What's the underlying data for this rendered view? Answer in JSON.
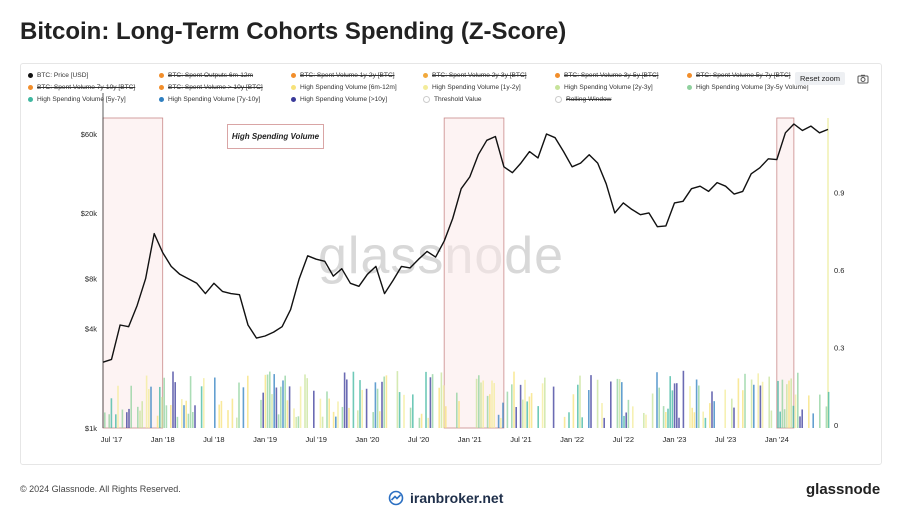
{
  "page": {
    "title": "Bitcoin: Long-Term Cohorts Spending (Z-Score)",
    "reset_zoom": "Reset zoom",
    "annotation": "High Spending Volume",
    "watermark": "glassnode",
    "copyright": "© 2024 Glassnode. All Rights Reserved.",
    "brand_center": "iranbroker.net",
    "brand_right": "glassnode",
    "camera_icon": "camera-icon"
  },
  "legend": [
    {
      "label": "BTC: Price [USD]",
      "color": "#111111",
      "struck": false
    },
    {
      "label": "BTC: Spent Outputs 6m-12m",
      "color": "#f28e2b",
      "struck": true
    },
    {
      "label": "BTC: Spent Volume 1y-2y [BTC]",
      "color": "#f28e2b",
      "struck": true
    },
    {
      "label": "BTC: Spent Volume 2y-3y [BTC]",
      "color": "#f2a93b",
      "struck": true
    },
    {
      "label": "BTC: Spent Volume 3y-5y [BTC]",
      "color": "#f28e2b",
      "struck": true
    },
    {
      "label": "BTC: Spent Volume 5y-7y [BTC]",
      "color": "#f28e2b",
      "struck": true
    },
    {
      "label": "BTC: Spent Volume 7y-10y [BTC]",
      "color": "#f28e2b",
      "struck": true
    },
    {
      "label": "BTC: Spent Volume > 10y [BTC]",
      "color": "#f28e2b",
      "struck": true
    },
    {
      "label": "High Spending Volume [6m-12m]",
      "color": "#f7e27a",
      "struck": false
    },
    {
      "label": "High Spending Volume [1y-2y]",
      "color": "#f3ec9a",
      "struck": false
    },
    {
      "label": "High Spending Volume [2y-3y]",
      "color": "#c7e39a",
      "struck": false
    },
    {
      "label": "High Spending Volume [3y-5y Volume]",
      "color": "#8fd19e",
      "struck": false
    },
    {
      "label": "High Spending Volume [5y-7y]",
      "color": "#3fb7a0",
      "struck": false
    },
    {
      "label": "High Spending Volume [7y-10y]",
      "color": "#2f7fc0",
      "struck": false
    },
    {
      "label": "High Spending Volume [>10y]",
      "color": "#3a3a9a",
      "struck": false
    },
    {
      "label": "Threshold Value",
      "color": "#ffffff",
      "struck": false
    },
    {
      "label": "Rolling Window",
      "color": "#ffffff",
      "struck": true
    }
  ],
  "chart_data": {
    "type": "line",
    "title": "Bitcoin: Long-Term Cohorts Spending (Z-Score)",
    "y_left": {
      "scale": "log",
      "range": [
        1000,
        75000
      ],
      "ticks": [
        "$1k",
        "$4k",
        "$8k",
        "$20k",
        "$60k"
      ]
    },
    "y_right": {
      "scale": "linear",
      "range": [
        0,
        1.2
      ],
      "ticks": [
        "0",
        "0.3",
        "0.6",
        "0.9"
      ]
    },
    "x_ticks": [
      "Jul '17",
      "Jan '18",
      "Jul '18",
      "Jan '19",
      "Jul '19",
      "Jan '20",
      "Jul '20",
      "Jan '21",
      "Jul '21",
      "Jan '22",
      "Jul '22",
      "Jan '23",
      "Jul '23",
      "Jan '24"
    ],
    "x_range": [
      "2017-06",
      "2024-07"
    ],
    "series": [
      {
        "name": "BTC: Price [USD]",
        "color": "#111111",
        "x": [
          "2017-06",
          "2017-07",
          "2017-08",
          "2017-09",
          "2017-10",
          "2017-11",
          "2017-12",
          "2018-01",
          "2018-02",
          "2018-03",
          "2018-04",
          "2018-05",
          "2018-06",
          "2018-07",
          "2018-08",
          "2018-09",
          "2018-10",
          "2018-11",
          "2018-12",
          "2019-01",
          "2019-02",
          "2019-03",
          "2019-04",
          "2019-05",
          "2019-06",
          "2019-07",
          "2019-08",
          "2019-09",
          "2019-10",
          "2019-11",
          "2019-12",
          "2020-01",
          "2020-02",
          "2020-03",
          "2020-04",
          "2020-05",
          "2020-06",
          "2020-07",
          "2020-08",
          "2020-09",
          "2020-10",
          "2020-11",
          "2020-12",
          "2021-01",
          "2021-02",
          "2021-03",
          "2021-04",
          "2021-05",
          "2021-06",
          "2021-07",
          "2021-08",
          "2021-09",
          "2021-10",
          "2021-11",
          "2021-12",
          "2022-01",
          "2022-02",
          "2022-03",
          "2022-04",
          "2022-05",
          "2022-06",
          "2022-07",
          "2022-08",
          "2022-09",
          "2022-10",
          "2022-11",
          "2022-12",
          "2023-01",
          "2023-02",
          "2023-03",
          "2023-04",
          "2023-05",
          "2023-06",
          "2023-07",
          "2023-08",
          "2023-09",
          "2023-10",
          "2023-11",
          "2023-12",
          "2024-01",
          "2024-02",
          "2024-03",
          "2024-04",
          "2024-05",
          "2024-06",
          "2024-07"
        ],
        "values": [
          2500,
          2600,
          4200,
          4100,
          5500,
          8000,
          15000,
          11500,
          9500,
          8500,
          8000,
          7500,
          6500,
          7500,
          6700,
          6500,
          6400,
          4200,
          3500,
          3600,
          3800,
          4100,
          5200,
          8000,
          11000,
          10500,
          10200,
          8300,
          9200,
          7500,
          7200,
          8500,
          9500,
          6500,
          7800,
          9500,
          9300,
          10500,
          11700,
          10800,
          13500,
          18500,
          28000,
          33000,
          45000,
          55000,
          58000,
          38000,
          35000,
          40000,
          47000,
          43000,
          60000,
          57000,
          47000,
          38000,
          40000,
          45000,
          40000,
          30000,
          20000,
          23000,
          21000,
          19500,
          20000,
          16500,
          16700,
          23000,
          23500,
          28000,
          29000,
          27000,
          30500,
          29000,
          26000,
          27000,
          34500,
          37500,
          42500,
          42000,
          61000,
          69000,
          63000,
          67000,
          61000,
          64000
        ]
      },
      {
        "name": "High Spending Volume",
        "color": "#f3ec9a",
        "values": []
      }
    ],
    "highlight_regions": [
      {
        "start": "2017-06",
        "end": "2018-01"
      },
      {
        "start": "2020-10",
        "end": "2021-05"
      },
      {
        "start": "2024-01",
        "end": "2024-03"
      }
    ]
  }
}
